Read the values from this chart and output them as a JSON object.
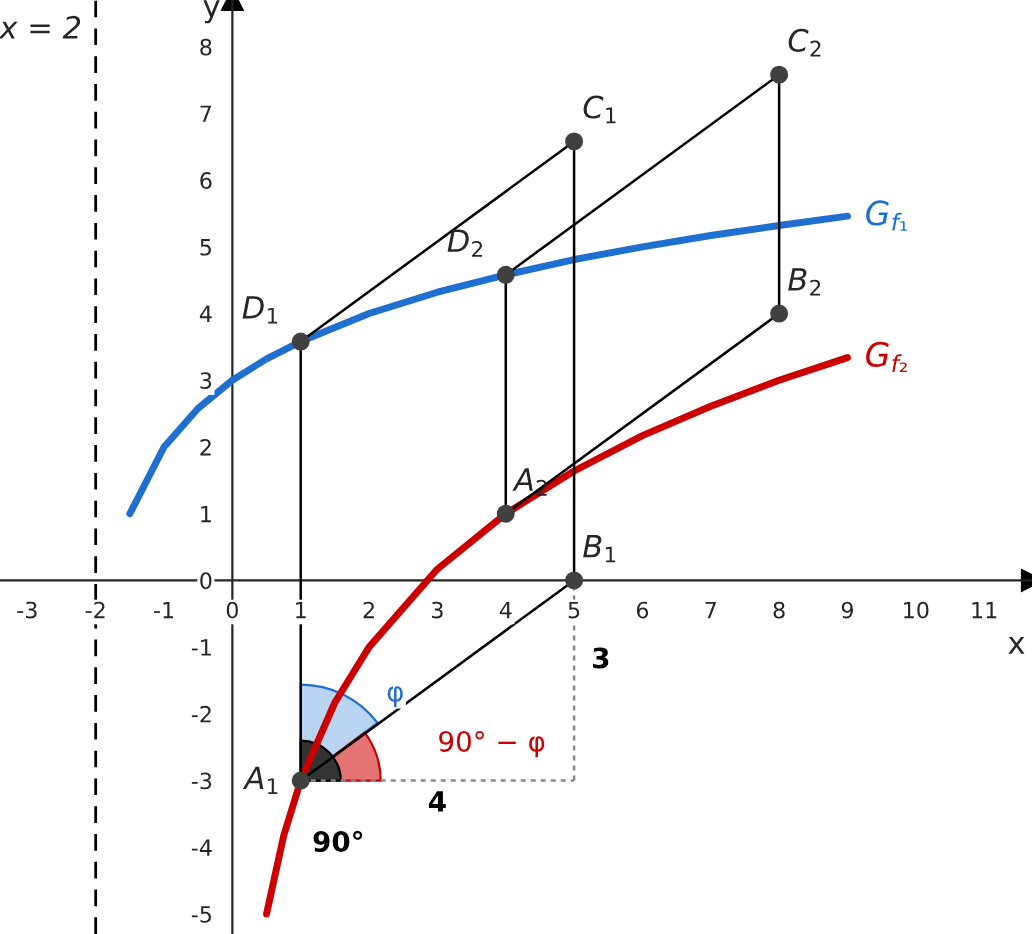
{
  "chart_data": {
    "type": "line",
    "xlabel": "x",
    "ylabel": "y",
    "xlim": [
      -3.4,
      11.7
    ],
    "ylim": [
      -5.3,
      8.7
    ],
    "xticks": [
      -3,
      -2,
      -1,
      0,
      1,
      2,
      3,
      4,
      5,
      6,
      7,
      8,
      9,
      10,
      11
    ],
    "yticks": [
      -5,
      -4,
      -3,
      -2,
      -1,
      0,
      1,
      2,
      3,
      4,
      5,
      6,
      7,
      8
    ],
    "grid": false,
    "line_style": "solid",
    "marker": "none",
    "series": [
      {
        "name": "G$_{f₁}$",
        "color": "#1f6fd0",
        "x": [
          -1.5,
          -1,
          -0.5,
          0,
          0.5,
          1,
          2,
          3,
          4,
          5,
          6,
          7,
          8,
          9
        ],
        "values": [
          1.0,
          2.0,
          2.58,
          3.0,
          3.32,
          3.58,
          4.0,
          4.32,
          4.58,
          4.81,
          5.0,
          5.17,
          5.32,
          5.46
        ]
      },
      {
        "name": "G$_{f₂}$",
        "color": "#cc0000",
        "x": [
          0.5,
          0.75,
          1,
          1.5,
          2,
          3,
          4,
          5,
          6,
          7,
          8,
          9
        ],
        "values": [
          -5.0,
          -3.83,
          -3.0,
          -1.83,
          -1.0,
          0.17,
          1.0,
          1.64,
          2.17,
          2.61,
          3.0,
          3.34
        ]
      },
      {
        "color": "#000000",
        "x": [
          1,
          5
        ],
        "values": [
          -3,
          0
        ]
      },
      {
        "color": "#000000",
        "x": [
          1,
          5
        ],
        "values": [
          3.58,
          6.58
        ]
      },
      {
        "color": "#000000",
        "x": [
          1,
          1
        ],
        "values": [
          -3,
          3.58
        ]
      },
      {
        "color": "#000000",
        "x": [
          5,
          5
        ],
        "values": [
          0,
          6.58
        ]
      },
      {
        "color": "#000000",
        "x": [
          4,
          8
        ],
        "values": [
          1,
          4
        ]
      },
      {
        "color": "#000000",
        "x": [
          4,
          8
        ],
        "values": [
          4.58,
          7.58
        ]
      },
      {
        "color": "#000000",
        "x": [
          4,
          4
        ],
        "values": [
          1,
          4.58
        ]
      },
      {
        "color": "#000000",
        "x": [
          8,
          8
        ],
        "values": [
          4,
          7.58
        ]
      },
      {
        "color": "#888888",
        "line_style": "dotted",
        "x": [
          1,
          5
        ],
        "values": [
          -3,
          -3
        ]
      },
      {
        "color": "#888888",
        "line_style": "dotted",
        "x": [
          5,
          5
        ],
        "values": [
          -3,
          0
        ]
      },
      {
        "type": "scatter",
        "marker": "circle",
        "color": "#404040",
        "x": [
          1,
          5,
          5,
          1,
          4,
          8,
          8,
          4
        ],
        "values": [
          -3,
          0,
          6.58,
          3.58,
          1,
          4,
          7.58,
          4.58
        ]
      }
    ],
    "ref_lines": [
      {
        "axis": "x",
        "value": -2,
        "line_style": "dashed",
        "color": "#000000"
      }
    ],
    "annotations": [
      {
        "text": "A$_{1}$",
        "x": 1,
        "y": -3
      },
      {
        "text": "B$_{1}$",
        "x": 5,
        "y": 0
      },
      {
        "text": "C$_{1}$",
        "x": 5,
        "y": 6.58
      },
      {
        "text": "D$_{1}$",
        "x": 1,
        "y": 3.58
      },
      {
        "text": "A$_{2}$",
        "x": 4,
        "y": 1
      },
      {
        "text": "B$_{2}$",
        "x": 8,
        "y": 4
      },
      {
        "text": "C$_{2}$",
        "x": 8,
        "y": 7.58
      },
      {
        "text": "D$_{2}$",
        "x": 4,
        "y": 4.58
      },
      "φ",
      "90° − φ",
      "90°",
      "3",
      "4",
      "x = 2"
    ]
  }
}
